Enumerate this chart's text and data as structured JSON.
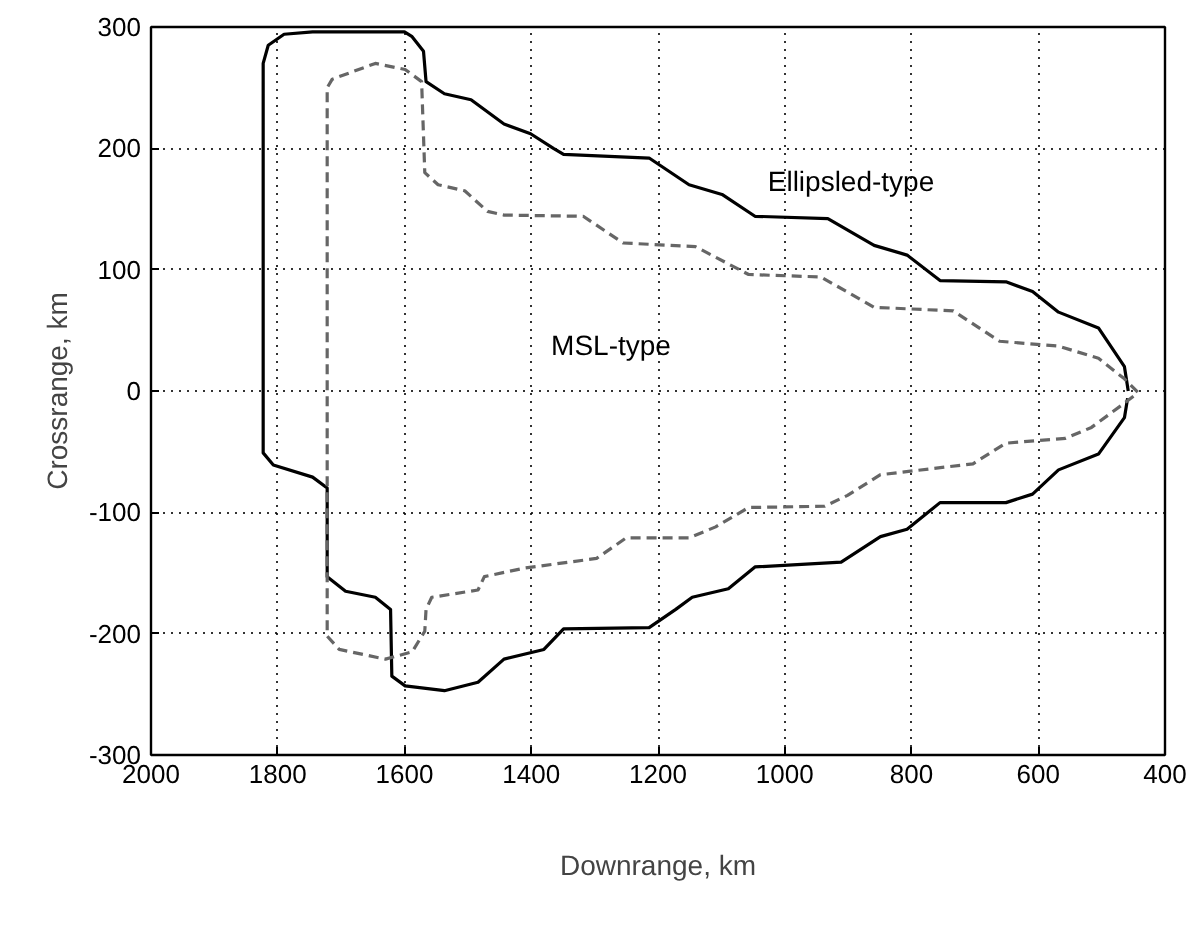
{
  "chart_data": {
    "type": "line",
    "xlabel": "Downrange, km",
    "ylabel": "Crossrange, km",
    "xlim": [
      2000,
      400
    ],
    "ylim": [
      -300,
      300
    ],
    "xticks": [
      2000,
      1800,
      1600,
      1400,
      1200,
      1000,
      800,
      600,
      400
    ],
    "yticks": [
      -300,
      -200,
      -100,
      0,
      100,
      200,
      300
    ],
    "grid": true,
    "series": [
      {
        "name": "Ellipsled-type",
        "color": "#000000",
        "line_style": "solid",
        "x": [
          458,
          464,
          505,
          568,
          609,
          651,
          755,
          807,
          859,
          932,
          1047,
          1099,
          1151,
          1214,
          1349,
          1365,
          1401,
          1443,
          1495,
          1537,
          1566,
          1570,
          1588,
          1600,
          1745,
          1790,
          1815,
          1823,
          1823,
          1807,
          1745,
          1722,
          1722,
          1693,
          1646,
          1622,
          1620,
          1599,
          1537,
          1484,
          1443,
          1380,
          1349,
          1214,
          1172,
          1146,
          1089,
          1047,
          911,
          849,
          807,
          755,
          651,
          609,
          568,
          505,
          464,
          459
        ],
        "values": [
          0,
          20,
          52,
          65,
          82,
          90,
          91,
          112,
          120,
          142,
          144,
          162,
          170,
          192,
          195,
          200,
          212,
          220,
          240,
          245,
          255,
          280,
          292,
          296,
          296,
          294,
          285,
          270,
          -51,
          -61,
          -71,
          -80,
          -153,
          -165,
          -170,
          -180,
          -235,
          -243,
          -247,
          -240,
          -221,
          -213,
          -196,
          -195,
          -180,
          -170,
          -163,
          -145,
          -141,
          -120,
          -114,
          -92,
          -92,
          -85,
          -65,
          -52,
          -22,
          -6
        ]
      },
      {
        "name": "MSL-type",
        "color": "#666666",
        "line_style": "dashed",
        "x": [
          443,
          464,
          505,
          568,
          661,
          734,
          859,
          943,
          1057,
          1141,
          1255,
          1318,
          1443,
          1469,
          1505,
          1547,
          1568,
          1573,
          1599,
          1646,
          1714,
          1722,
          1722,
          1703,
          1630,
          1588,
          1568,
          1566,
          1557,
          1484,
          1474,
          1411,
          1297,
          1250,
          1151,
          1109,
          1057,
          937,
          901,
          849,
          703,
          651,
          557,
          516,
          464,
          449
        ],
        "values": [
          -1,
          10,
          27,
          37,
          41,
          66,
          69,
          94,
          96,
          119,
          122,
          144,
          145,
          148,
          165,
          170,
          180,
          255,
          265,
          270,
          257,
          250,
          -202,
          -213,
          -221,
          -215,
          -198,
          -180,
          -170,
          -164,
          -153,
          -146,
          -138,
          -121,
          -121,
          -112,
          -96,
          -95,
          -86,
          -69,
          -60,
          -43,
          -39,
          -30,
          -10,
          -4
        ]
      }
    ]
  }
}
